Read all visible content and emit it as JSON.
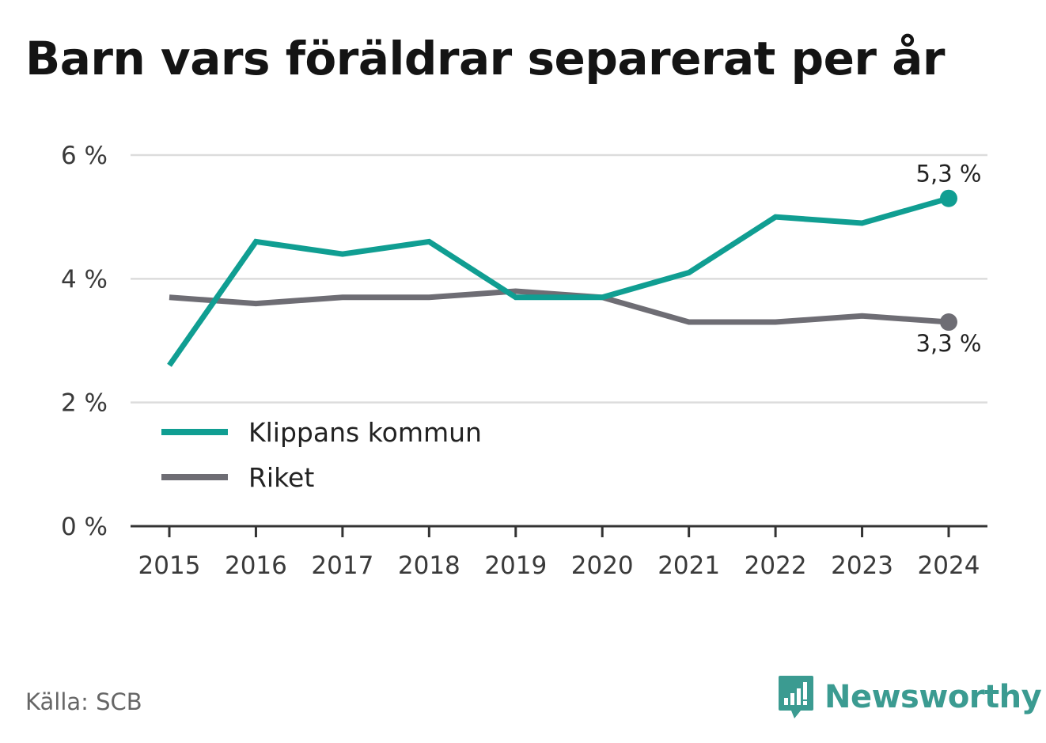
{
  "title": "Barn vars föräldrar separerat per år",
  "source": "Källa: SCB",
  "brand": {
    "name": "Newsworthy",
    "icon": "newsworthy-logo-icon",
    "color": "#3b9b91"
  },
  "chart_data": {
    "type": "line",
    "title": "Barn vars föräldrar separerat per år",
    "x": [
      "2015",
      "2016",
      "2017",
      "2018",
      "2019",
      "2020",
      "2021",
      "2022",
      "2023",
      "2024"
    ],
    "ylim": [
      0,
      6
    ],
    "yticks": [
      0,
      2,
      4,
      6
    ],
    "ytick_labels": [
      "0 %",
      "2 %",
      "4 %",
      "6 %"
    ],
    "grid": true,
    "legend_position": "lower-left",
    "series": [
      {
        "name": "Klippans kommun",
        "color": "#109e92",
        "values": [
          2.6,
          4.6,
          4.4,
          4.6,
          3.7,
          3.7,
          4.1,
          5.0,
          4.9,
          5.3
        ],
        "end_label": "5,3 %"
      },
      {
        "name": "Riket",
        "color": "#6e6d74",
        "values": [
          3.7,
          3.6,
          3.7,
          3.7,
          3.8,
          3.7,
          3.3,
          3.3,
          3.4,
          3.3
        ],
        "end_label": "3,3 %"
      }
    ]
  }
}
